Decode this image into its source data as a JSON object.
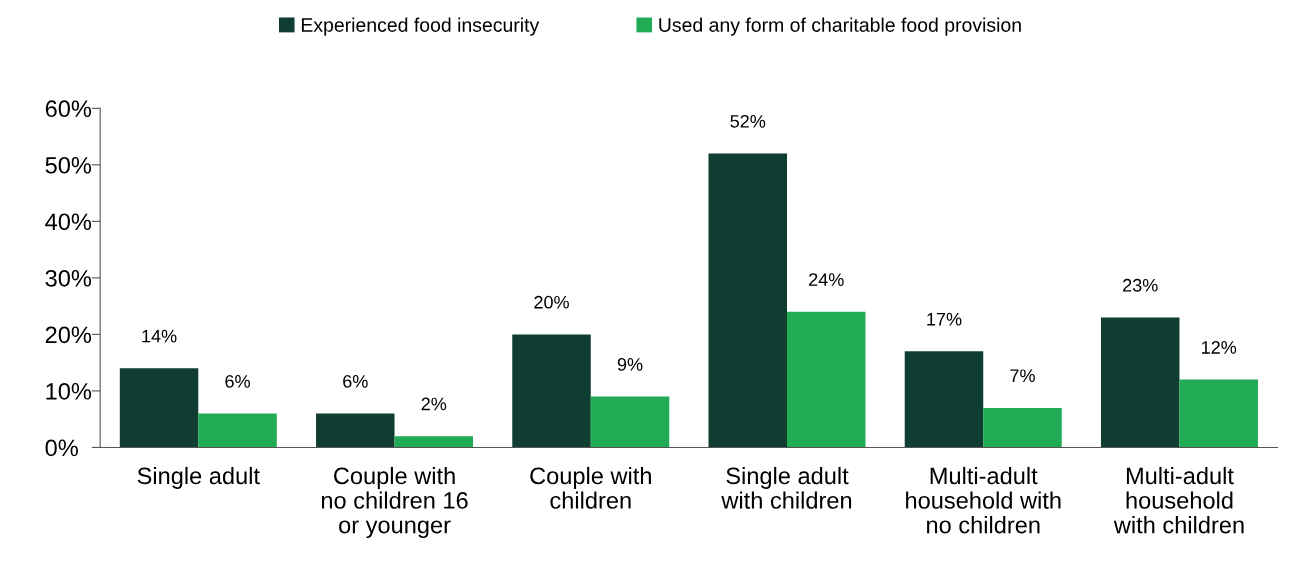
{
  "chart_data": {
    "type": "bar",
    "categories": [
      "Single adult",
      "Couple with\nno children 16\nor younger",
      "Couple with\nchildren",
      "Single adult\nwith children",
      "Multi-adult\nhousehold with\nno children",
      "Multi-adult\nhousehold\nwith children"
    ],
    "series": [
      {
        "name": "Experienced food insecurity",
        "color": "#0f3d31",
        "values": [
          14,
          6,
          20,
          52,
          17,
          23
        ],
        "value_labels": [
          "14%",
          "6%",
          "20%",
          "52%",
          "17%",
          "23%"
        ]
      },
      {
        "name": "Used any form of charitable food provision",
        "color": "#21ab54",
        "values": [
          6,
          2,
          9,
          24,
          7,
          12
        ],
        "value_labels": [
          "6%",
          "2%",
          "9%",
          "24%",
          "7%",
          "12%"
        ]
      }
    ],
    "ylim": [
      0,
      60
    ],
    "yticks": [
      {
        "value": 0,
        "label": "0%"
      },
      {
        "value": 10,
        "label": "10%"
      },
      {
        "value": 20,
        "label": "20%"
      },
      {
        "value": 30,
        "label": "30%"
      },
      {
        "value": 40,
        "label": "40%"
      },
      {
        "value": 50,
        "label": "50%"
      },
      {
        "value": 60,
        "label": "60%"
      }
    ],
    "grid": false,
    "legend": "top"
  }
}
